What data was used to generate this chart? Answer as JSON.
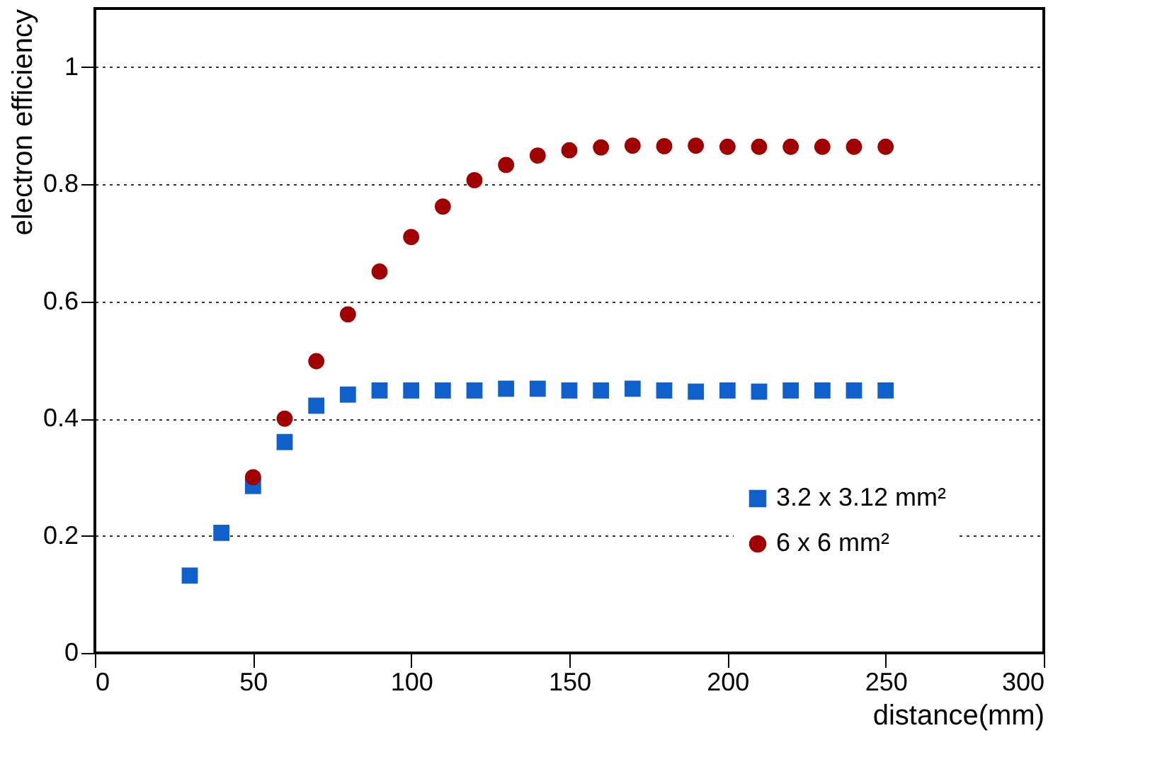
{
  "chart_data": {
    "type": "scatter",
    "xlabel": "distance(mm)",
    "ylabel": "electron efficiency",
    "xlim": [
      0,
      300
    ],
    "xticks": [
      0,
      50,
      100,
      150,
      200,
      250,
      300
    ],
    "ylim": [
      0,
      1.1
    ],
    "yticks": [
      0,
      0.2,
      0.4,
      0.6,
      0.8,
      1
    ],
    "grid": "y",
    "legend": "bottom right",
    "x": [
      30,
      40,
      50,
      60,
      70,
      80,
      90,
      100,
      110,
      120,
      130,
      140,
      150,
      160,
      170,
      180,
      190,
      200,
      210,
      220,
      230,
      240,
      250
    ],
    "series": [
      {
        "name": "3.2 x 3.12 mm²",
        "color": "#1060cc",
        "marker": "square",
        "values": [
          0.132,
          0.205,
          0.285,
          0.36,
          0.422,
          0.441,
          0.448,
          0.448,
          0.448,
          0.448,
          0.451,
          0.451,
          0.448,
          0.448,
          0.451,
          0.448,
          0.446,
          0.448,
          0.446,
          0.448,
          0.448,
          0.448,
          0.448
        ]
      },
      {
        "name": "6 x 6 mm²",
        "color": "#a00000",
        "marker": "circle",
        "x": [
          50,
          60,
          70,
          80,
          90,
          100,
          110,
          120,
          130,
          140,
          150,
          160,
          170,
          180,
          190,
          200,
          210,
          220,
          230,
          240,
          250
        ],
        "values": [
          0.3,
          0.4,
          0.498,
          0.578,
          0.651,
          0.71,
          0.762,
          0.807,
          0.833,
          0.849,
          0.858,
          0.863,
          0.866,
          0.865,
          0.866,
          0.864,
          0.864,
          0.864,
          0.864,
          0.864,
          0.864
        ]
      }
    ]
  }
}
